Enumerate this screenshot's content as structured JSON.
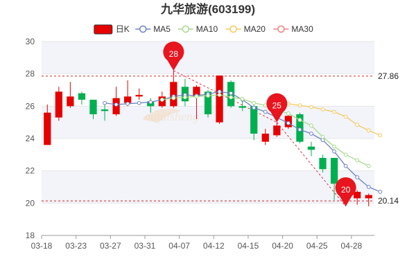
{
  "chart_data": {
    "type": "candlestick",
    "title": "九华旅游(603199)",
    "legend": [
      {
        "name": "日K",
        "color": "#e60000",
        "kind": "candle"
      },
      {
        "name": "MA5",
        "color": "#6d82c3",
        "kind": "line"
      },
      {
        "name": "MA10",
        "color": "#a6d98a",
        "kind": "line"
      },
      {
        "name": "MA20",
        "color": "#f5c85a",
        "kind": "line"
      },
      {
        "name": "MA30",
        "color": "#f08080",
        "kind": "line"
      }
    ],
    "legend_position": "top-center",
    "ylim": [
      18,
      30
    ],
    "y_ticks": [
      "18",
      "20",
      "22",
      "24",
      "26",
      "28",
      "30"
    ],
    "x_ticks": [
      "03-18",
      "03-23",
      "03-27",
      "03-31",
      "04-07",
      "04-12",
      "04-15",
      "04-20",
      "04-25",
      "04-28"
    ],
    "x_tick_index": [
      0,
      3,
      6,
      9,
      12,
      15,
      18,
      21,
      24,
      27
    ],
    "num_bars": 29,
    "candles": [
      {
        "o": 23.6,
        "c": 25.6,
        "h": 26.1,
        "l": 23.6
      },
      {
        "o": 25.3,
        "c": 26.9,
        "h": 27.2,
        "l": 25.1
      },
      {
        "o": 26.0,
        "c": 26.6,
        "h": 27.5,
        "l": 25.9
      },
      {
        "o": 26.8,
        "c": 26.4,
        "h": 26.9,
        "l": 26.1
      },
      {
        "o": 26.4,
        "c": 25.5,
        "h": 26.4,
        "l": 25.2
      },
      {
        "o": 25.8,
        "c": 25.7,
        "h": 26.2,
        "l": 25.1
      },
      {
        "o": 25.5,
        "c": 26.5,
        "h": 27.2,
        "l": 25.4
      },
      {
        "o": 26.2,
        "c": 26.6,
        "h": 27.6,
        "l": 26.0
      },
      {
        "o": 26.6,
        "c": 26.7,
        "h": 27.1,
        "l": 26.4
      },
      {
        "o": 26.3,
        "c": 26.0,
        "h": 26.5,
        "l": 25.6
      },
      {
        "o": 26.0,
        "c": 26.6,
        "h": 26.9,
        "l": 25.9
      },
      {
        "o": 26.0,
        "c": 27.5,
        "h": 28.2,
        "l": 25.9
      },
      {
        "o": 27.2,
        "c": 26.3,
        "h": 27.7,
        "l": 26.0
      },
      {
        "o": 26.6,
        "c": 27.2,
        "h": 27.3,
        "l": 25.2
      },
      {
        "o": 26.9,
        "c": 25.5,
        "h": 27.0,
        "l": 25.3
      },
      {
        "o": 25.0,
        "c": 27.9,
        "h": 27.9,
        "l": 24.9
      },
      {
        "o": 27.5,
        "c": 26.0,
        "h": 27.6,
        "l": 25.9
      },
      {
        "o": 26.0,
        "c": 25.9,
        "h": 26.3,
        "l": 25.7
      },
      {
        "o": 26.0,
        "c": 24.3,
        "h": 26.1,
        "l": 23.9
      },
      {
        "o": 23.8,
        "c": 24.3,
        "h": 24.6,
        "l": 23.6
      },
      {
        "o": 24.2,
        "c": 24.8,
        "h": 25.0,
        "l": 24.1
      },
      {
        "o": 24.7,
        "c": 25.4,
        "h": 25.6,
        "l": 24.6
      },
      {
        "o": 25.5,
        "c": 23.8,
        "h": 25.6,
        "l": 23.7
      },
      {
        "o": 23.5,
        "c": 23.3,
        "h": 23.8,
        "l": 22.9
      },
      {
        "o": 22.8,
        "c": 22.1,
        "h": 23.0,
        "l": 21.9
      },
      {
        "o": 22.8,
        "c": 21.2,
        "h": 22.8,
        "l": 20.2
      },
      {
        "o": 20.6,
        "c": 20.2,
        "h": 20.9,
        "l": 19.8
      },
      {
        "o": 20.3,
        "c": 20.7,
        "h": 20.8,
        "l": 19.9
      },
      {
        "o": 20.3,
        "c": 20.5,
        "h": 20.6,
        "l": 19.8
      }
    ],
    "series": [
      {
        "name": "MA5",
        "color": "#6d82c3",
        "start": 5,
        "values": [
          26.2,
          26.1,
          26.15,
          26.2,
          26.25,
          26.4,
          26.6,
          26.7,
          26.65,
          26.75,
          26.9,
          26.8,
          26.4,
          25.9,
          25.65,
          25.3,
          24.95,
          24.55,
          24.3,
          23.9,
          23.2,
          22.3,
          21.6,
          21.0,
          20.7
        ]
      },
      {
        "name": "MA10",
        "color": "#a6d98a",
        "start": 10,
        "values": [
          26.4,
          26.5,
          26.55,
          26.6,
          26.65,
          26.7,
          26.55,
          26.45,
          26.2,
          26.05,
          25.75,
          25.55,
          25.15,
          24.8,
          24.1,
          23.5,
          23.0,
          22.65,
          22.3
        ]
      },
      {
        "name": "MA20",
        "color": "#f5c85a",
        "start": 20,
        "values": [
          26.35,
          26.15,
          26.05,
          25.95,
          25.8,
          25.65,
          25.35,
          24.85,
          24.5,
          24.2
        ]
      }
    ],
    "reference_lines": [
      {
        "value": 27.86,
        "label": "27.86",
        "color": "#cc2222"
      },
      {
        "value": 20.14,
        "label": "20.14",
        "color": "#cc2222"
      }
    ],
    "markers": [
      {
        "label": "28",
        "index": 11,
        "value": 28.2
      },
      {
        "label": "25",
        "index": 20,
        "value": 25.0
      },
      {
        "label": "20",
        "index": 26,
        "value": 19.8
      }
    ],
    "colors": {
      "up": "#e60000",
      "down": "#00b050",
      "grid": "#e6e6e6",
      "band": "#f2f4fa",
      "marker": "#e8141e"
    },
    "grid": true
  }
}
